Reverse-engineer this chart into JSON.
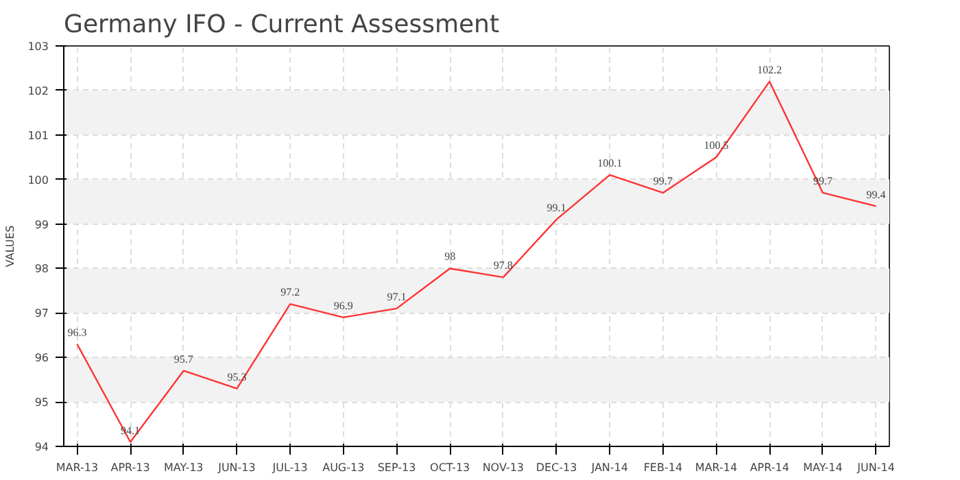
{
  "chart_data": {
    "type": "line",
    "title": "Germany IFO - Current Assessment",
    "ylabel": "VALUES",
    "categories": [
      "MAR-13",
      "APR-13",
      "MAY-13",
      "JUN-13",
      "JUL-13",
      "AUG-13",
      "SEP-13",
      "OCT-13",
      "NOV-13",
      "DEC-13",
      "JAN-14",
      "FEB-14",
      "MAR-14",
      "APR-14",
      "MAY-14",
      "JUN-14"
    ],
    "series": [
      {
        "color": "#ff3333",
        "values": [
          96.3,
          94.1,
          95.7,
          95.3,
          97.2,
          96.9,
          97.1,
          98,
          97.8,
          99.1,
          100.1,
          99.7,
          100.5,
          102.2,
          99.7,
          99.4
        ]
      }
    ],
    "ylim": [
      94,
      103
    ],
    "yticks": [
      94,
      95,
      96,
      97,
      98,
      99,
      100,
      101,
      102,
      103
    ],
    "grid": true,
    "data_labels": true
  }
}
